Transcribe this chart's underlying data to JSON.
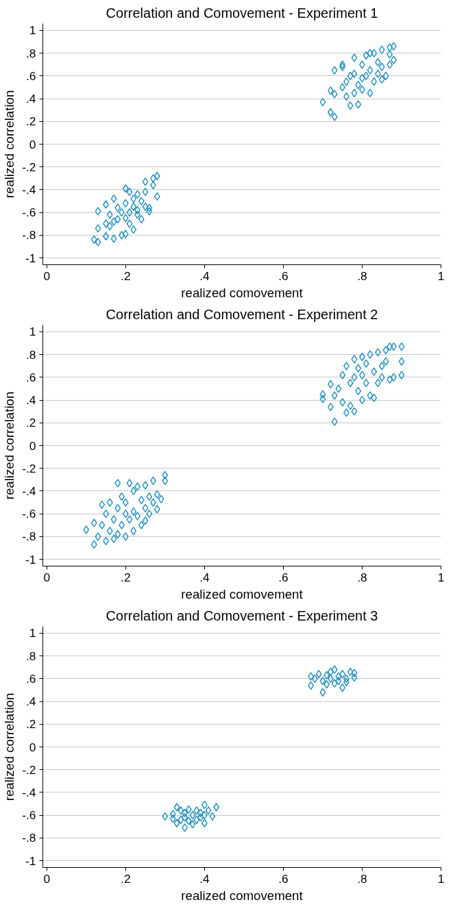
{
  "chart_data": [
    {
      "type": "scatter",
      "title": "Correlation and Comovement - Experiment 1",
      "xlabel": "realized comovement",
      "ylabel": "realized correlation",
      "marker": "diamond",
      "grid": "y",
      "xlim": [
        -0.01,
        1.0
      ],
      "ylim": [
        -1.06,
        1.06
      ],
      "xticks": [
        {
          "value": 0,
          "label": "0"
        },
        {
          "value": 0.2,
          "label": ".2"
        },
        {
          "value": 0.4,
          "label": ".4"
        },
        {
          "value": 0.6,
          "label": ".6"
        },
        {
          "value": 0.8,
          "label": ".8"
        },
        {
          "value": 1,
          "label": "1"
        }
      ],
      "yticks": [
        {
          "value": -1,
          "label": "-1"
        },
        {
          "value": -0.8,
          "label": "-.8"
        },
        {
          "value": -0.6,
          "label": "-.6"
        },
        {
          "value": -0.4,
          "label": "-.4"
        },
        {
          "value": -0.2,
          "label": "-.2"
        },
        {
          "value": 0,
          "label": "0"
        },
        {
          "value": 0.2,
          "label": ".2"
        },
        {
          "value": 0.4,
          "label": ".4"
        },
        {
          "value": 0.6,
          "label": ".6"
        },
        {
          "value": 0.8,
          "label": ".8"
        },
        {
          "value": 1,
          "label": "1"
        }
      ],
      "series": [
        {
          "color": "#1a8cba",
          "x": [
            0.12,
            0.13,
            0.13,
            0.13,
            0.15,
            0.15,
            0.15,
            0.16,
            0.16,
            0.17,
            0.17,
            0.17,
            0.18,
            0.18,
            0.19,
            0.19,
            0.2,
            0.2,
            0.2,
            0.2,
            0.21,
            0.21,
            0.21,
            0.22,
            0.22,
            0.22,
            0.23,
            0.23,
            0.23,
            0.24,
            0.24,
            0.25,
            0.25,
            0.25,
            0.26,
            0.26,
            0.27,
            0.27,
            0.28,
            0.28,
            0.7,
            0.72,
            0.73,
            0.72,
            0.73,
            0.73,
            0.75,
            0.75,
            0.75,
            0.76,
            0.76,
            0.77,
            0.77,
            0.78,
            0.78,
            0.78,
            0.79,
            0.79,
            0.8,
            0.8,
            0.8,
            0.81,
            0.81,
            0.82,
            0.82,
            0.82,
            0.83,
            0.83,
            0.84,
            0.84,
            0.85,
            0.85,
            0.85,
            0.86,
            0.87,
            0.87,
            0.87,
            0.88,
            0.88
          ],
          "values": [
            -0.84,
            -0.86,
            -0.59,
            -0.74,
            -0.53,
            -0.81,
            -0.7,
            -0.62,
            -0.72,
            -0.48,
            -0.83,
            -0.68,
            -0.56,
            -0.66,
            -0.6,
            -0.8,
            -0.39,
            -0.79,
            -0.65,
            -0.52,
            -0.42,
            -0.6,
            -0.7,
            -0.75,
            -0.55,
            -0.48,
            -0.44,
            -0.62,
            -0.58,
            -0.5,
            -0.66,
            -0.33,
            -0.42,
            -0.55,
            -0.59,
            -0.56,
            -0.3,
            -0.36,
            -0.28,
            -0.46,
            0.37,
            0.28,
            0.24,
            0.47,
            0.44,
            0.65,
            0.68,
            0.7,
            0.5,
            0.42,
            0.55,
            0.34,
            0.6,
            0.76,
            0.45,
            0.62,
            0.35,
            0.52,
            0.58,
            0.7,
            0.48,
            0.78,
            0.6,
            0.8,
            0.45,
            0.65,
            0.8,
            0.55,
            0.72,
            0.62,
            0.83,
            0.57,
            0.68,
            0.6,
            0.85,
            0.79,
            0.7,
            0.86,
            0.74
          ]
        }
      ]
    },
    {
      "type": "scatter",
      "title": "Correlation and Comovement - Experiment 2",
      "xlabel": "realized comovement",
      "ylabel": "realized correlation",
      "marker": "diamond",
      "grid": "y",
      "xlim": [
        -0.01,
        1.0
      ],
      "ylim": [
        -1.06,
        1.06
      ],
      "xticks": [
        {
          "value": 0,
          "label": "0"
        },
        {
          "value": 0.2,
          "label": ".2"
        },
        {
          "value": 0.4,
          "label": ".4"
        },
        {
          "value": 0.6,
          "label": ".6"
        },
        {
          "value": 0.8,
          "label": ".8"
        },
        {
          "value": 1,
          "label": "1"
        }
      ],
      "yticks": [
        {
          "value": -1,
          "label": "-1"
        },
        {
          "value": -0.8,
          "label": "-.8"
        },
        {
          "value": -0.6,
          "label": "-.6"
        },
        {
          "value": -0.4,
          "label": "-.4"
        },
        {
          "value": -0.2,
          "label": "-.2"
        },
        {
          "value": 0,
          "label": "0"
        },
        {
          "value": 0.2,
          "label": ".2"
        },
        {
          "value": 0.4,
          "label": ".4"
        },
        {
          "value": 0.6,
          "label": ".6"
        },
        {
          "value": 0.8,
          "label": ".8"
        },
        {
          "value": 1,
          "label": "1"
        }
      ],
      "series": [
        {
          "color": "#1a8cba",
          "x": [
            0.1,
            0.12,
            0.12,
            0.13,
            0.14,
            0.14,
            0.15,
            0.15,
            0.16,
            0.16,
            0.17,
            0.17,
            0.18,
            0.18,
            0.18,
            0.19,
            0.19,
            0.2,
            0.2,
            0.2,
            0.21,
            0.21,
            0.22,
            0.22,
            0.22,
            0.23,
            0.23,
            0.24,
            0.24,
            0.25,
            0.25,
            0.25,
            0.26,
            0.26,
            0.27,
            0.27,
            0.28,
            0.28,
            0.29,
            0.3,
            0.3,
            0.7,
            0.7,
            0.72,
            0.72,
            0.73,
            0.73,
            0.74,
            0.75,
            0.75,
            0.76,
            0.76,
            0.77,
            0.77,
            0.78,
            0.78,
            0.78,
            0.79,
            0.79,
            0.8,
            0.8,
            0.8,
            0.81,
            0.81,
            0.82,
            0.82,
            0.83,
            0.83,
            0.84,
            0.84,
            0.85,
            0.85,
            0.86,
            0.86,
            0.87,
            0.87,
            0.88,
            0.88,
            0.9,
            0.9,
            0.9
          ],
          "values": [
            -0.74,
            -0.87,
            -0.68,
            -0.8,
            -0.52,
            -0.7,
            -0.6,
            -0.84,
            -0.5,
            -0.75,
            -0.65,
            -0.82,
            -0.33,
            -0.55,
            -0.78,
            -0.45,
            -0.7,
            -0.6,
            -0.8,
            -0.5,
            -0.33,
            -0.65,
            -0.4,
            -0.58,
            -0.75,
            -0.36,
            -0.62,
            -0.48,
            -0.7,
            -0.35,
            -0.55,
            -0.66,
            -0.45,
            -0.6,
            -0.31,
            -0.5,
            -0.43,
            -0.56,
            -0.47,
            -0.26,
            -0.31,
            0.41,
            0.45,
            0.34,
            0.54,
            0.21,
            0.44,
            0.5,
            0.62,
            0.38,
            0.7,
            0.29,
            0.55,
            0.35,
            0.3,
            0.76,
            0.6,
            0.48,
            0.68,
            0.78,
            0.4,
            0.62,
            0.55,
            0.72,
            0.8,
            0.44,
            0.65,
            0.42,
            0.82,
            0.55,
            0.7,
            0.6,
            0.84,
            0.74,
            0.87,
            0.58,
            0.87,
            0.6,
            0.87,
            0.74,
            0.62
          ]
        }
      ]
    },
    {
      "type": "scatter",
      "title": "Correlation and Comovement - Experiment 3",
      "xlabel": "realized comovement",
      "ylabel": "realized correlation",
      "marker": "diamond",
      "grid": "y",
      "xlim": [
        -0.01,
        1.0
      ],
      "ylim": [
        -1.06,
        1.06
      ],
      "xticks": [
        {
          "value": 0,
          "label": "0"
        },
        {
          "value": 0.2,
          "label": ".2"
        },
        {
          "value": 0.4,
          "label": ".4"
        },
        {
          "value": 0.6,
          "label": ".6"
        },
        {
          "value": 0.8,
          "label": ".8"
        },
        {
          "value": 1,
          "label": "1"
        }
      ],
      "yticks": [
        {
          "value": -1,
          "label": "-1"
        },
        {
          "value": -0.8,
          "label": "-.8"
        },
        {
          "value": -0.6,
          "label": "-.6"
        },
        {
          "value": -0.4,
          "label": "-.4"
        },
        {
          "value": -0.2,
          "label": "-.2"
        },
        {
          "value": 0,
          "label": "0"
        },
        {
          "value": 0.2,
          "label": ".2"
        },
        {
          "value": 0.4,
          "label": ".4"
        },
        {
          "value": 0.6,
          "label": ".6"
        },
        {
          "value": 0.8,
          "label": ".8"
        },
        {
          "value": 1,
          "label": "1"
        }
      ],
      "series": [
        {
          "color": "#1a8cba",
          "x": [
            0.3,
            0.32,
            0.32,
            0.33,
            0.33,
            0.34,
            0.34,
            0.35,
            0.35,
            0.35,
            0.36,
            0.36,
            0.37,
            0.37,
            0.38,
            0.38,
            0.39,
            0.39,
            0.4,
            0.4,
            0.4,
            0.41,
            0.42,
            0.43,
            0.67,
            0.67,
            0.68,
            0.69,
            0.7,
            0.7,
            0.71,
            0.71,
            0.72,
            0.72,
            0.73,
            0.73,
            0.74,
            0.74,
            0.75,
            0.75,
            0.76,
            0.76,
            0.77,
            0.78,
            0.78
          ],
          "values": [
            -0.61,
            -0.59,
            -0.63,
            -0.53,
            -0.67,
            -0.56,
            -0.64,
            -0.71,
            -0.58,
            -0.62,
            -0.55,
            -0.65,
            -0.6,
            -0.68,
            -0.56,
            -0.64,
            -0.58,
            -0.62,
            -0.51,
            -0.6,
            -0.67,
            -0.56,
            -0.61,
            -0.53,
            0.54,
            0.62,
            0.6,
            0.64,
            0.48,
            0.58,
            0.55,
            0.63,
            0.6,
            0.66,
            0.56,
            0.68,
            0.62,
            0.58,
            0.52,
            0.64,
            0.6,
            0.57,
            0.66,
            0.61,
            0.65
          ]
        }
      ]
    }
  ]
}
